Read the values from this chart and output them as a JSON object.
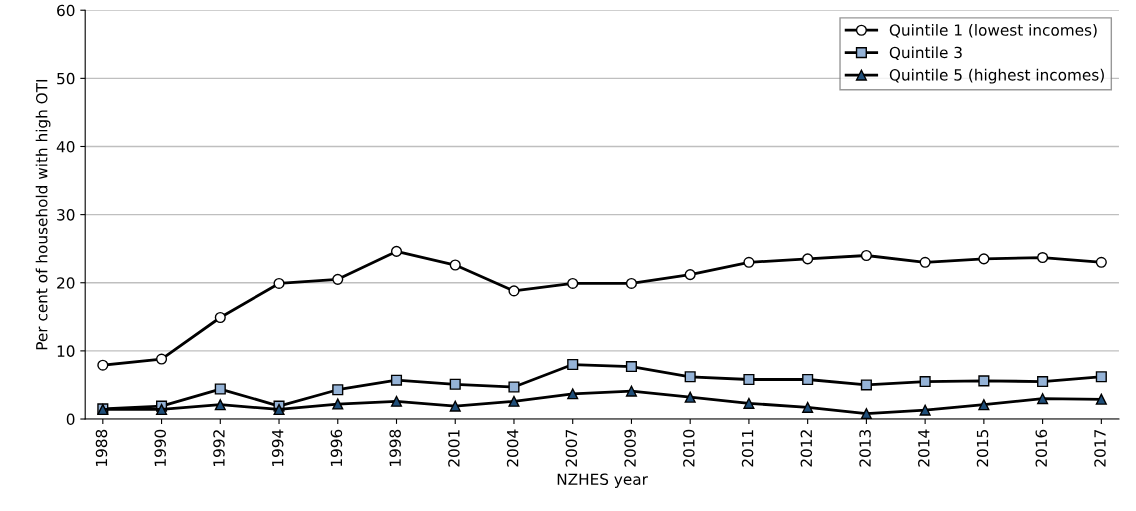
{
  "chart_data": {
    "type": "line",
    "xlabel": "NZHES year",
    "ylabel": "Per cent of household with high OTI",
    "categories": [
      "1988",
      "1990",
      "1992",
      "1994",
      "1996",
      "1998",
      "2001",
      "2004",
      "2007",
      "2009",
      "2010",
      "2011",
      "2012",
      "2013",
      "2014",
      "2015",
      "2016",
      "2017"
    ],
    "series": [
      {
        "name": "Quintile 1 (lowest incomes)",
        "color": "#ffffff",
        "marker": "circle",
        "values": [
          7.9,
          8.8,
          14.9,
          19.9,
          20.5,
          24.6,
          22.6,
          18.8,
          19.9,
          19.9,
          21.2,
          23.0,
          23.5,
          24.0,
          23.0,
          23.5,
          23.7,
          23.0
        ]
      },
      {
        "name": "Quintile 3",
        "color": "#95b3d7",
        "marker": "square",
        "values": [
          1.5,
          1.9,
          4.4,
          1.9,
          4.3,
          5.7,
          5.1,
          4.7,
          8.0,
          7.7,
          6.2,
          5.8,
          5.8,
          5.0,
          5.5,
          5.6,
          5.5,
          6.2
        ]
      },
      {
        "name": "Quintile 5 (highest incomes)",
        "color": "#1f4e79",
        "marker": "triangle",
        "values": [
          1.4,
          1.4,
          2.1,
          1.4,
          2.2,
          2.6,
          1.9,
          2.6,
          3.7,
          4.1,
          3.2,
          2.3,
          1.7,
          0.8,
          1.3,
          2.1,
          3.0,
          2.9
        ]
      }
    ],
    "ylim": [
      0,
      60
    ],
    "yticks": [
      0,
      10,
      20,
      30,
      40,
      50,
      60
    ],
    "grid": "y",
    "legend": "top right"
  }
}
